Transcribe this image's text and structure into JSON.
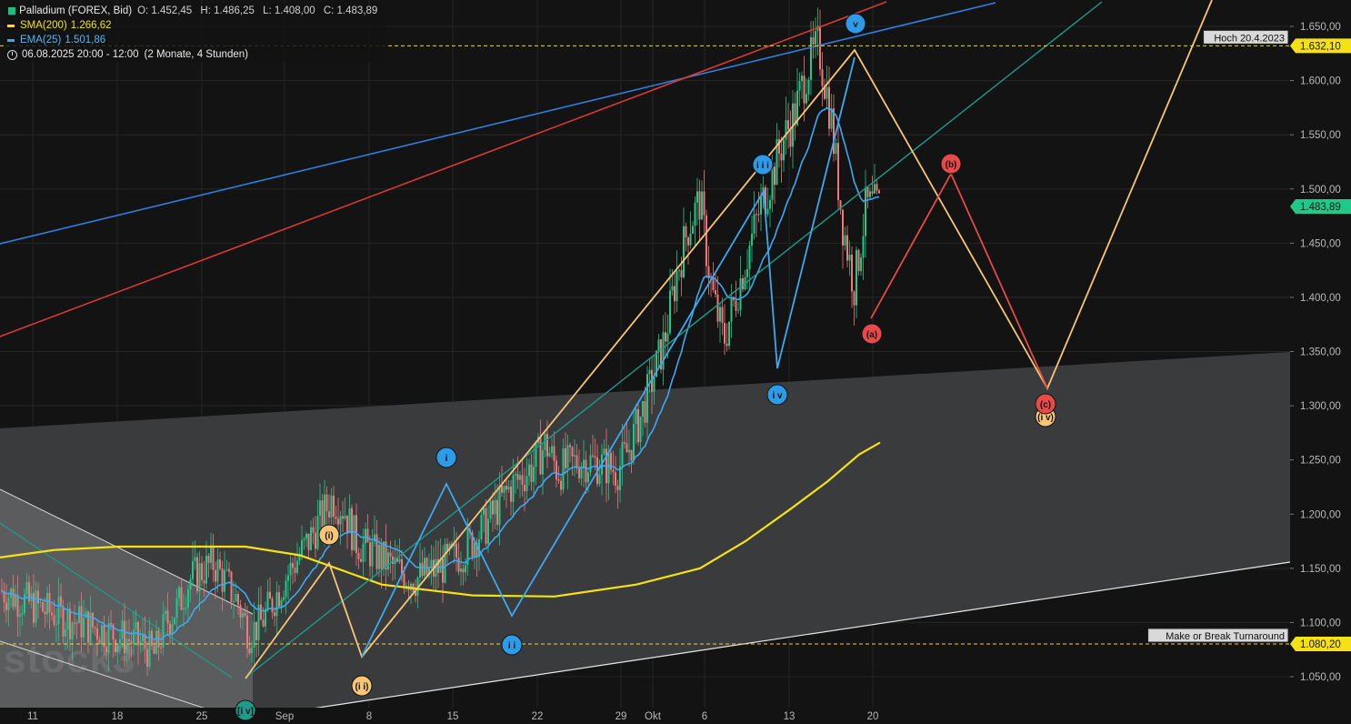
{
  "header": {
    "instrument": "Palladium (FOREX, Bid)",
    "ohlc": {
      "open": "O: 1.452,45",
      "high": "H: 1.486,25",
      "low": "L: 1.408,00",
      "close": "C: 1.483,89"
    },
    "indicators": [
      {
        "label": "SMA(200)",
        "value": "1.266,62",
        "color": "#f5e216"
      },
      {
        "label": "EMA(25)",
        "value": "1.501,86",
        "color": "#3fa8f0"
      }
    ],
    "timeframe": "06.08.2025 20:00 - 12:00",
    "timeframe_note": "(2 Monate, 4 Stunden)"
  },
  "watermark": "stock3",
  "price_axis": {
    "ticks": [
      "1.650,00",
      "1.600,00",
      "1.550,00",
      "1.500,00",
      "1.450,00",
      "1.400,00",
      "1.350,00",
      "1.300,00",
      "1.250,00",
      "1.200,00",
      "1.150,00",
      "1.100,00",
      "1.050,00"
    ],
    "tick_values": [
      1650,
      1600,
      1550,
      1500,
      1450,
      1400,
      1350,
      1300,
      1250,
      1200,
      1150,
      1100,
      1050
    ],
    "current_price_label": "1.483,89",
    "current_price": 1483.89,
    "high_label": "1.632,10",
    "high_value": 1632.1,
    "high_note": "Hoch 20.4.2023",
    "support_label": "1.080,20",
    "support_value": 1080.2,
    "support_note": "Make or Break Turnaround"
  },
  "time_axis": {
    "labels": [
      "11",
      "18",
      "25",
      "Sep",
      "8",
      "15",
      "22",
      "29",
      "Okt",
      "6",
      "13",
      "20"
    ]
  },
  "wave_labels": [
    {
      "text": "[i v]",
      "color": "#1e9b8a"
    },
    {
      "text": "(i)",
      "color": "#f7c576"
    },
    {
      "text": "(i i)",
      "color": "#f7c576"
    },
    {
      "text": "i",
      "color": "#2e9be8"
    },
    {
      "text": "i i",
      "color": "#2e9be8"
    },
    {
      "text": "i i i",
      "color": "#2e9be8"
    },
    {
      "text": "i v",
      "color": "#2e9be8"
    },
    {
      "text": "v",
      "color": "#2e9be8"
    },
    {
      "text": "(a)",
      "color": "#e84a4a"
    },
    {
      "text": "(b)",
      "color": "#e84a4a"
    },
    {
      "text": "(c)",
      "color": "#e84a4a"
    },
    {
      "text": "(i v)",
      "color": "#f7c576"
    }
  ],
  "chart_data": {
    "type": "candlestick",
    "title": "Palladium (FOREX, Bid)",
    "period": "06.08.2025 - 20.10.2025, 4 Stunden",
    "ylim": [
      1020,
      1675
    ],
    "series": [
      {
        "name": "Palladium (FOREX, Bid)",
        "ohlc_last": {
          "open": 1452.45,
          "high": 1486.25,
          "low": 1408.0,
          "close": 1483.89
        },
        "path_points": [
          [
            0,
            1130
          ],
          [
            4,
            1110
          ],
          [
            8,
            1095
          ],
          [
            12,
            1080
          ],
          [
            13,
            1070
          ],
          [
            14,
            1100
          ],
          [
            15,
            1115
          ],
          [
            16,
            1140
          ],
          [
            18,
            1155
          ],
          [
            20,
            1120
          ],
          [
            21,
            1090
          ],
          [
            22,
            1100
          ],
          [
            24,
            1140
          ],
          [
            26,
            1175
          ],
          [
            28,
            1215
          ],
          [
            29,
            1205
          ],
          [
            30,
            1175
          ],
          [
            32,
            1160
          ],
          [
            34,
            1145
          ],
          [
            35,
            1140
          ],
          [
            37,
            1150
          ],
          [
            39,
            1165
          ],
          [
            41,
            1190
          ],
          [
            43,
            1225
          ],
          [
            45,
            1245
          ],
          [
            46,
            1265
          ],
          [
            47,
            1240
          ],
          [
            49,
            1250
          ],
          [
            51,
            1245
          ],
          [
            52,
            1240
          ],
          [
            53,
            1260
          ],
          [
            54,
            1290
          ],
          [
            55,
            1325
          ],
          [
            56,
            1360
          ],
          [
            57,
            1420
          ],
          [
            58,
            1465
          ],
          [
            59,
            1490
          ],
          [
            60,
            1405
          ],
          [
            61,
            1360
          ],
          [
            62,
            1400
          ],
          [
            63,
            1440
          ],
          [
            64,
            1480
          ],
          [
            65,
            1510
          ],
          [
            66,
            1545
          ],
          [
            67,
            1570
          ],
          [
            68,
            1610
          ],
          [
            69,
            1632
          ],
          [
            70,
            1570
          ],
          [
            71,
            1470
          ],
          [
            72,
            1410
          ],
          [
            73,
            1484
          ]
        ]
      },
      {
        "name": "SMA(200)",
        "value": 1266.62
      },
      {
        "name": "EMA(25)",
        "value": 1501.86
      }
    ],
    "annotations": [
      "Hoch 20.4.2023",
      "Make or Break Turnaround"
    ]
  }
}
